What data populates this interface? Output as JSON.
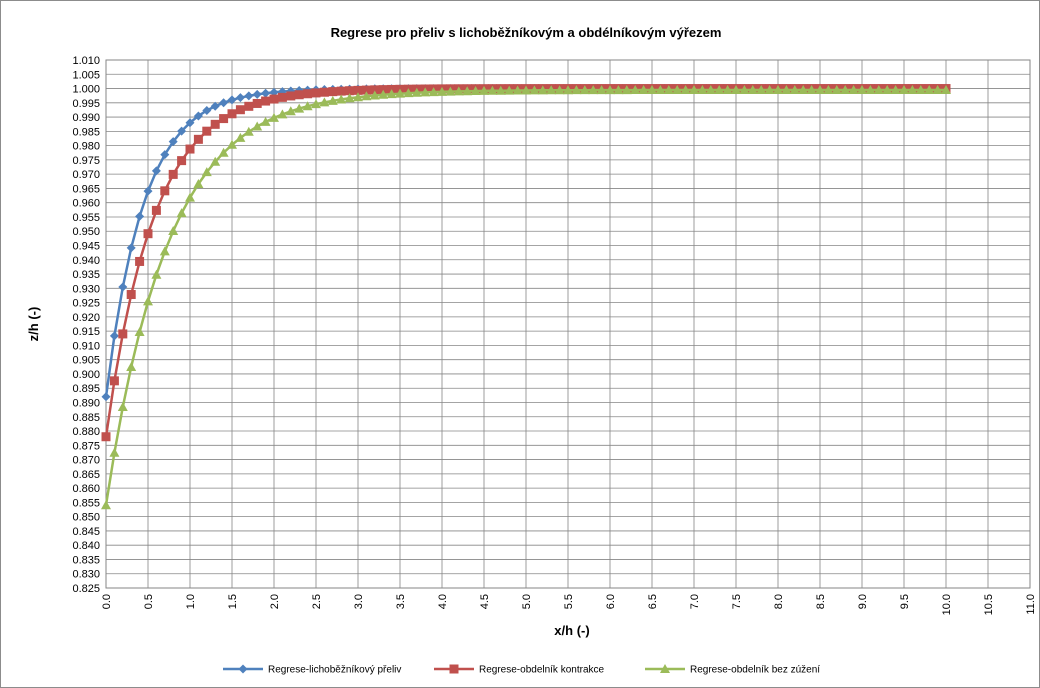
{
  "chart_data": {
    "type": "line",
    "title": "Regrese pro přeliv s lichoběžníkovým a obdélníkovým výřezem",
    "xlabel": "x/h (-)",
    "ylabel": "z/h (-)",
    "xlim": [
      0,
      11
    ],
    "ylim": [
      0.825,
      1.01
    ],
    "x_ticks": [
      "0.0",
      "0.5",
      "1.0",
      "1.5",
      "2.0",
      "2.5",
      "3.0",
      "3.5",
      "4.0",
      "4.5",
      "5.0",
      "5.5",
      "6.0",
      "6.5",
      "7.0",
      "7.5",
      "8.0",
      "8.5",
      "9.0",
      "9.5",
      "10.0",
      "10.5",
      "11.0"
    ],
    "y_ticks": [
      "0.825",
      "0.830",
      "0.835",
      "0.840",
      "0.845",
      "0.850",
      "0.855",
      "0.860",
      "0.865",
      "0.870",
      "0.875",
      "0.880",
      "0.885",
      "0.890",
      "0.895",
      "0.900",
      "0.905",
      "0.910",
      "0.915",
      "0.920",
      "0.925",
      "0.930",
      "0.935",
      "0.940",
      "0.945",
      "0.950",
      "0.955",
      "0.960",
      "0.965",
      "0.970",
      "0.975",
      "0.980",
      "0.985",
      "0.990",
      "0.995",
      "1.000",
      "1.005",
      "1.010"
    ],
    "grid": true,
    "legend_position": "bottom",
    "series": [
      {
        "name": "Regrese-lichoběžníkový přeliv",
        "color": "#4f81bd",
        "marker": "diamond",
        "start": 0.892,
        "end": 1.0,
        "k": 2.2
      },
      {
        "name": "Regrese-obdelník kontrakce",
        "color": "#c0504d",
        "marker": "square",
        "start": 0.878,
        "end": 1.0,
        "k": 1.75
      },
      {
        "name": "Regrese-obdelník bez zúžení",
        "color": "#9bbb59",
        "marker": "triangle",
        "start": 0.854,
        "end": 0.9995,
        "k": 1.35
      }
    ],
    "x_step": 0.1,
    "x_end": 10.0
  }
}
